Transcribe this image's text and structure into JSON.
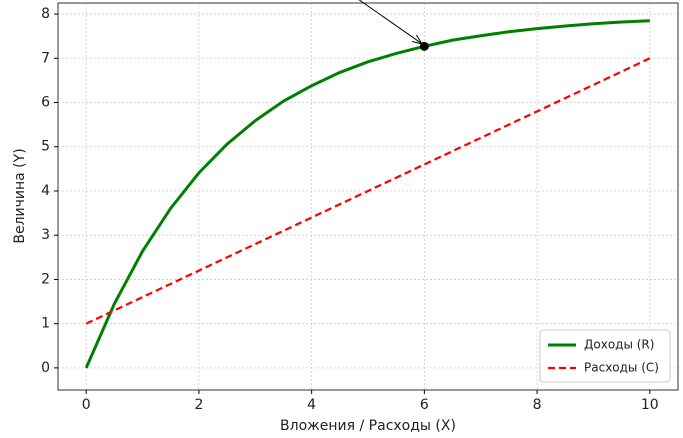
{
  "chart_data": {
    "type": "line",
    "x_label": "Вложения / Расходы (X)",
    "y_label": "Величина (Y)",
    "x": [
      0,
      0.5,
      1,
      1.5,
      2,
      2.5,
      3,
      3.5,
      4,
      4.5,
      5,
      5.5,
      6,
      6.5,
      7,
      7.5,
      8,
      8.5,
      9,
      9.5,
      10
    ],
    "series": [
      {
        "name": "Доходы (R)",
        "color": "#008000",
        "dash": false,
        "values": [
          0,
          1.45,
          2.64,
          3.61,
          4.41,
          5.06,
          5.59,
          6.03,
          6.38,
          6.68,
          6.92,
          7.11,
          7.27,
          7.41,
          7.51,
          7.6,
          7.67,
          7.73,
          7.78,
          7.82,
          7.85
        ]
      },
      {
        "name": "Расходы (C)",
        "color": "#ff0000",
        "dash": true,
        "values": [
          1,
          1.3,
          1.6,
          1.9,
          2.2,
          2.5,
          2.8,
          3.1,
          3.4,
          3.7,
          4,
          4.3,
          4.6,
          4.9,
          5.2,
          5.5,
          5.8,
          6.1,
          6.4,
          6.7,
          7
        ]
      }
    ],
    "highlight_point": {
      "x": 6,
      "y": 7.27
    },
    "xlim": [
      -0.5,
      10.5
    ],
    "ylim": [
      -0.5,
      8.25
    ],
    "xticks": [
      0,
      2,
      4,
      6,
      8,
      10
    ],
    "yticks": [
      0,
      1,
      2,
      3,
      4,
      5,
      6,
      7,
      8
    ],
    "grid": true,
    "legend": "lower right"
  }
}
